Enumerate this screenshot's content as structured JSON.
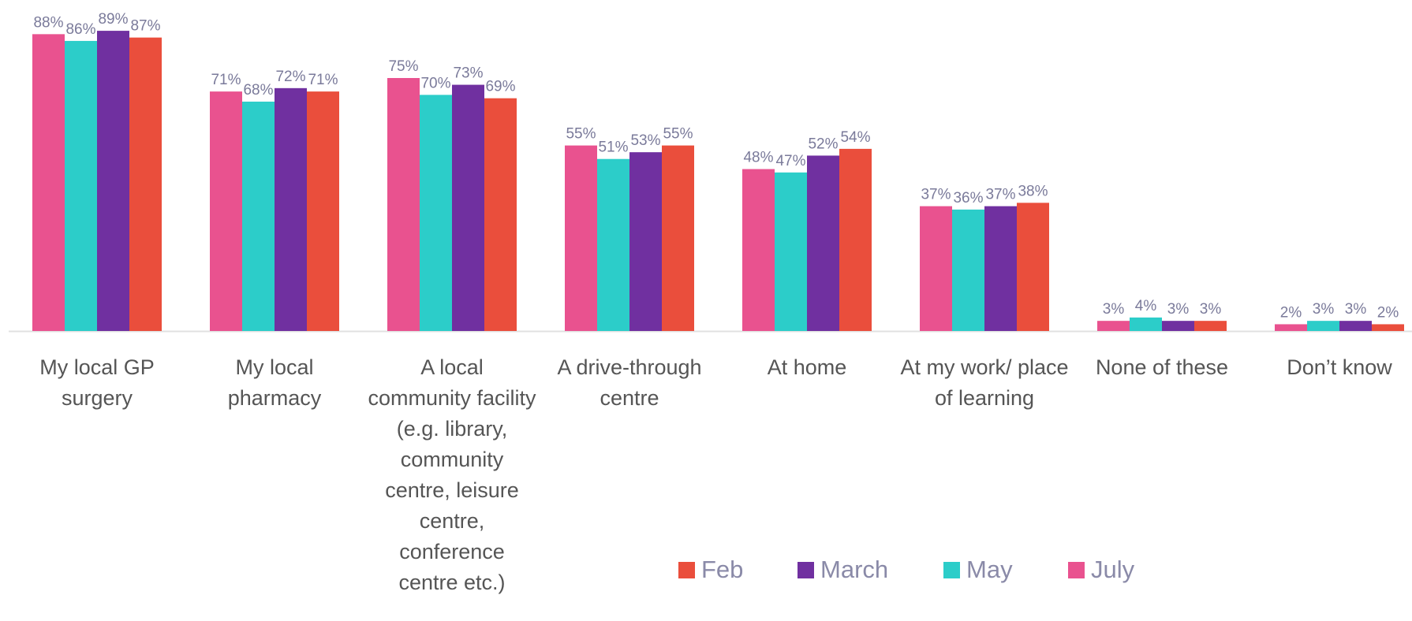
{
  "chart_data": {
    "type": "bar",
    "categories": [
      "My local GP surgery",
      "My local pharmacy",
      "A local community facility (e.g. library, community centre, leisure centre, conference centre etc.)",
      "A drive-through centre",
      "At home",
      "At my work/ place of learning",
      "None of these",
      "Don’t know"
    ],
    "series": [
      {
        "name": "Feb",
        "color": "#ea4e3c",
        "values": [
          87,
          71,
          69,
          55,
          54,
          38,
          3,
          2
        ],
        "value_labels": [
          "87%",
          "71%",
          "69%",
          "55%",
          "54%",
          "38%",
          "3%",
          "2%"
        ]
      },
      {
        "name": "March",
        "color": "#7030a0",
        "values": [
          89,
          72,
          73,
          53,
          52,
          37,
          3,
          3
        ],
        "value_labels": [
          "89%",
          "72%",
          "73%",
          "53%",
          "52%",
          "37%",
          "3%",
          "3%"
        ]
      },
      {
        "name": "May",
        "color": "#2ccdc9",
        "values": [
          86,
          68,
          70,
          51,
          47,
          36,
          4,
          3
        ],
        "value_labels": [
          "86%",
          "68%",
          "70%",
          "51%",
          "47%",
          "36%",
          "4%",
          "3%"
        ]
      },
      {
        "name": "July",
        "color": "#e9528f",
        "values": [
          88,
          71,
          75,
          55,
          48,
          37,
          3,
          2
        ],
        "value_labels": [
          "88%",
          "71%",
          "75%",
          "55%",
          "48%",
          "37%",
          "3%",
          "2%"
        ]
      }
    ],
    "legend": "bottom"
  }
}
